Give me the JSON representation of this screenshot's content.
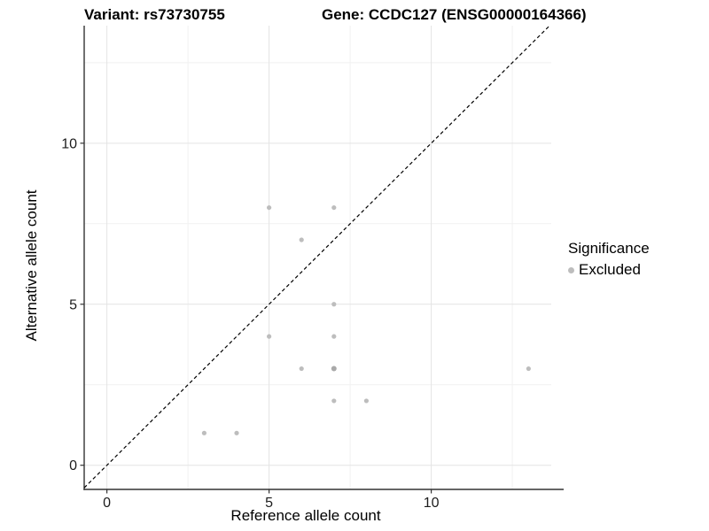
{
  "figure": {
    "title_left": "Variant: rs73730755",
    "title_right": "Gene: CCDC127 (ENSG00000164366)"
  },
  "chart_data": {
    "type": "scatter",
    "title_left": "Variant: rs73730755",
    "title_right": "Gene: CCDC127 (ENSG00000164366)",
    "xlabel": "Reference allele count",
    "ylabel": "Alternative allele count",
    "xlim": [
      -0.7,
      13.7
    ],
    "ylim": [
      -0.75,
      13.65
    ],
    "x_ticks": [
      0,
      5,
      10
    ],
    "y_ticks": [
      0,
      5,
      10
    ],
    "x_minor_ticks": [
      2.5,
      7.5,
      12.5
    ],
    "y_minor_ticks": [
      2.5,
      7.5,
      12.5
    ],
    "grid": true,
    "grid_major_color": "#e4e4e4",
    "grid_minor_color": "#f1f1f1",
    "axis_line_color": "#333333",
    "identity_line": {
      "style": "dashed",
      "color": "#000000",
      "from": [
        -0.7,
        -0.7
      ],
      "to": [
        13.65,
        13.65
      ]
    },
    "series": [
      {
        "name": "Excluded",
        "color": "#bdbdbd",
        "points": [
          [
            3,
            1
          ],
          [
            4,
            1
          ],
          [
            5,
            4
          ],
          [
            5,
            8
          ],
          [
            6,
            3
          ],
          [
            6,
            7
          ],
          [
            7,
            2
          ],
          [
            7,
            3
          ],
          [
            7,
            4
          ],
          [
            7,
            5
          ],
          [
            7,
            8
          ],
          [
            8,
            2
          ],
          [
            13,
            3
          ]
        ]
      }
    ],
    "overplotted_point": {
      "xy": [
        7,
        3
      ],
      "color": "#a9a9a9"
    },
    "legend": {
      "position": "right",
      "title": "Significance",
      "entries": [
        {
          "label": "Excluded",
          "color": "#bdbdbd"
        }
      ]
    }
  }
}
